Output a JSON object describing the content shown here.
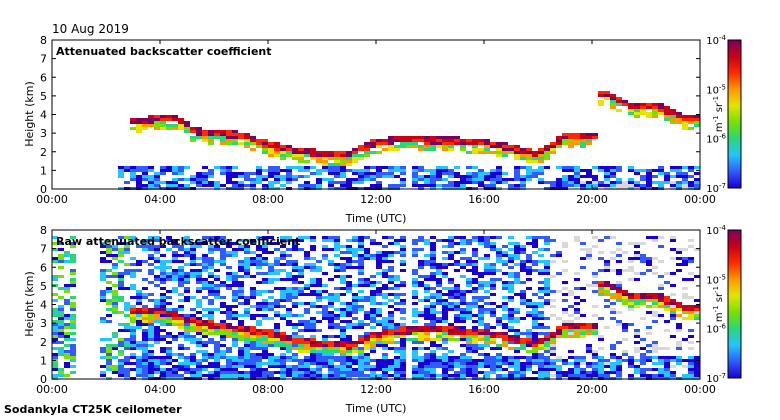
{
  "date_label": "10 Aug 2019",
  "footer_label": "Sodankyla CT25K ceilometer",
  "colorbar": {
    "unit_base": "m",
    "unit_exp1": "-1",
    "unit_mid": " sr",
    "unit_exp2": "-1",
    "tick_base": "10",
    "tick_exps": [
      "-4",
      "-5",
      "-6",
      "-7"
    ],
    "colors": [
      "#1a00d0",
      "#2f5bff",
      "#24c4ff",
      "#2ad67a",
      "#78e000",
      "#e4e400",
      "#ff9800",
      "#ff2a00",
      "#c80018",
      "#7a0060"
    ]
  },
  "chart_data": [
    {
      "type": "heatmap",
      "title": "Attenuated backscatter coefficient",
      "xlabel": "Time (UTC)",
      "ylabel": "Height (km)",
      "xlim": [
        0,
        24
      ],
      "ylim": [
        0,
        8
      ],
      "x_tick_values": [
        0,
        4,
        8,
        12,
        16,
        20,
        24
      ],
      "x_tick_labels": [
        "00:00",
        "04:00",
        "08:00",
        "12:00",
        "16:00",
        "20:00",
        "00:00"
      ],
      "y_tick_values": [
        0,
        1,
        2,
        3,
        4,
        5,
        6,
        7,
        8
      ],
      "y_tick_labels": [
        "0",
        "1",
        "2",
        "3",
        "4",
        "5",
        "6",
        "7",
        "8"
      ],
      "colorbar_range": [
        "1e-7",
        "1e-4"
      ],
      "layer_height_km": [
        [
          3.0,
          3.6
        ],
        [
          3.5,
          3.7
        ],
        [
          4.0,
          3.8
        ],
        [
          4.7,
          3.8
        ],
        [
          5.3,
          3.1
        ],
        [
          6.0,
          3.0
        ],
        [
          7.0,
          2.9
        ],
        [
          8.0,
          2.4
        ],
        [
          9.0,
          2.1
        ],
        [
          10.0,
          1.9
        ],
        [
          11.0,
          1.9
        ],
        [
          12.0,
          2.5
        ],
        [
          13.0,
          2.7
        ],
        [
          14.0,
          2.6
        ],
        [
          15.0,
          2.6
        ],
        [
          16.0,
          2.5
        ],
        [
          17.0,
          2.2
        ],
        [
          18.0,
          1.9
        ],
        [
          19.0,
          2.8
        ],
        [
          20.0,
          2.9
        ],
        [
          20.6,
          5.1
        ],
        [
          21.5,
          4.4
        ],
        [
          22.5,
          4.4
        ],
        [
          23.5,
          3.8
        ]
      ]
    },
    {
      "type": "heatmap",
      "title": "Raw attenuated backscatter coefficient",
      "xlabel": "Time (UTC)",
      "ylabel": "Height (km)",
      "xlim": [
        0,
        24
      ],
      "ylim": [
        0,
        8
      ],
      "x_tick_values": [
        0,
        4,
        8,
        12,
        16,
        20,
        24
      ],
      "x_tick_labels": [
        "00:00",
        "04:00",
        "08:00",
        "12:00",
        "16:00",
        "20:00",
        "00:00"
      ],
      "y_tick_values": [
        0,
        1,
        2,
        3,
        4,
        5,
        6,
        7,
        8
      ],
      "y_tick_labels": [
        "0",
        "1",
        "2",
        "3",
        "4",
        "5",
        "6",
        "7",
        "8"
      ],
      "colorbar_range": [
        "1e-7",
        "1e-4"
      ],
      "layer_height_km": [
        [
          3.0,
          3.6
        ],
        [
          4.0,
          3.7
        ],
        [
          5.0,
          3.2
        ],
        [
          6.0,
          2.9
        ],
        [
          7.0,
          2.7
        ],
        [
          8.0,
          2.5
        ],
        [
          9.0,
          2.1
        ],
        [
          10.0,
          1.9
        ],
        [
          11.0,
          1.8
        ],
        [
          12.0,
          2.4
        ],
        [
          13.0,
          2.6
        ],
        [
          14.0,
          2.7
        ],
        [
          15.0,
          2.6
        ],
        [
          16.0,
          2.5
        ],
        [
          17.0,
          2.2
        ],
        [
          18.0,
          1.9
        ],
        [
          19.0,
          2.8
        ],
        [
          20.0,
          2.9
        ],
        [
          20.6,
          5.1
        ],
        [
          21.5,
          4.4
        ],
        [
          22.5,
          4.4
        ],
        [
          23.5,
          3.8
        ]
      ]
    }
  ]
}
